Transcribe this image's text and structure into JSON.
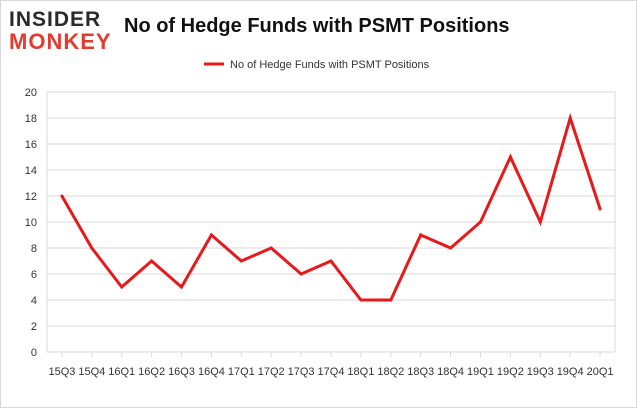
{
  "header": {
    "logo_top": "INSIDER",
    "logo_bottom": "MONKEY",
    "title": "No of Hedge Funds with PSMT Positions"
  },
  "colors": {
    "line": "#e8191a",
    "grid": "#d9d9d9",
    "logo_red": "#e33b2f"
  },
  "chart_data": {
    "type": "line",
    "title": "No of Hedge Funds with PSMT Positions",
    "xlabel": "",
    "ylabel": "",
    "legend": "top-center",
    "grid": true,
    "ylim": [
      0,
      20
    ],
    "yticks": [
      0,
      2,
      4,
      6,
      8,
      10,
      12,
      14,
      16,
      18,
      20
    ],
    "categories": [
      "15Q3",
      "15Q4",
      "16Q1",
      "16Q2",
      "16Q3",
      "16Q4",
      "17Q1",
      "17Q2",
      "17Q3",
      "17Q4",
      "18Q1",
      "18Q2",
      "18Q3",
      "18Q4",
      "19Q1",
      "19Q2",
      "19Q3",
      "19Q4",
      "20Q1"
    ],
    "series": [
      {
        "name": "No of Hedge Funds with PSMT Positions",
        "values": [
          12,
          8,
          5,
          7,
          5,
          9,
          7,
          8,
          6,
          7,
          4,
          4,
          9,
          8,
          10,
          15,
          10,
          18,
          11
        ]
      }
    ]
  }
}
